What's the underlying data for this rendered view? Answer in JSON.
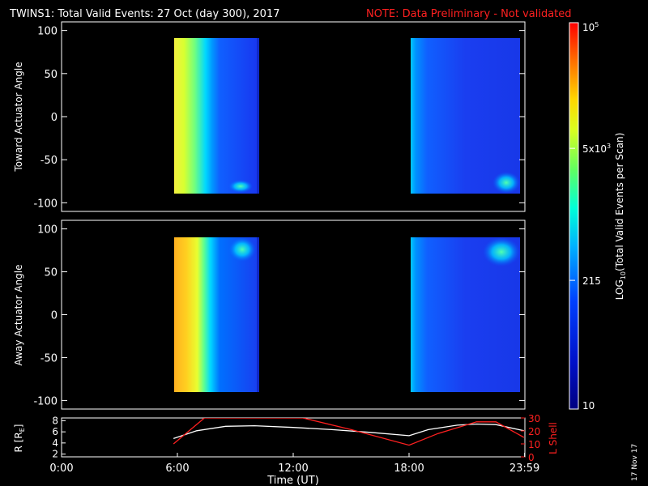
{
  "header": {
    "title": "TWINS1: Total Valid Events: 27 Oct (day 300), 2017",
    "note": "NOTE: Data Preliminary - Not validated",
    "note_color": "#ff2020"
  },
  "date_stamp": "17 Nov 17",
  "chart_data": [
    {
      "type": "heatmap",
      "ylabel": "Toward Actuator Angle",
      "ylim": [
        -110,
        110
      ],
      "yticks": [
        "100",
        "50",
        "0",
        "-50",
        "-100"
      ],
      "xlim": [
        0,
        24
      ],
      "data_intervals_ut_hours": [
        [
          5.9,
          10.0
        ],
        [
          17.95,
          23.95
        ]
      ],
      "angle_range": [
        -88,
        90
      ],
      "colormap": "rainbow (blue-low to red-high)",
      "description_of_values": "intensity falls from ~5x10^3 at start of each interval to ~10^2"
    },
    {
      "type": "heatmap",
      "ylabel": "Away Actuator Angle",
      "ylim": [
        -110,
        110
      ],
      "yticks": [
        "100",
        "50",
        "0",
        "-50",
        "-100"
      ],
      "xlim": [
        0,
        24
      ],
      "data_intervals_ut_hours": [
        [
          5.9,
          10.0
        ],
        [
          17.95,
          23.95
        ]
      ],
      "angle_range": [
        -88,
        90
      ]
    },
    {
      "type": "line",
      "ylabel": "R [R",
      "ylabel_sub": "E",
      "ylabel_end": "]",
      "y2label": "L Shell",
      "y2label_color": "#ff2020",
      "yticks": [
        "8",
        "6",
        "4",
        "2"
      ],
      "y2ticks": [
        "30",
        "20",
        "10",
        "0"
      ],
      "ylim": [
        1.5,
        8.5
      ],
      "y2lim": [
        0,
        30
      ],
      "xlabel": "Time (UT)",
      "xticks": [
        "0:00",
        "6:00",
        "12:00",
        "18:00",
        "23:59"
      ],
      "xlim": [
        0,
        24
      ],
      "series": [
        {
          "color": "#ffffff",
          "x": [
            5.8,
            7,
            8.5,
            10,
            12,
            14,
            16,
            18,
            19,
            20.5,
            21.5,
            22.5,
            23.95
          ],
          "y": [
            4.8,
            6.2,
            7.0,
            7.1,
            6.8,
            6.4,
            5.9,
            5.3,
            6.4,
            7.2,
            7.4,
            7.3,
            6.2
          ]
        },
        {
          "color": "#ff2020",
          "x": [
            5.8,
            7.4,
            12.5,
            15,
            18,
            19.5,
            21.5,
            22.5,
            23.95
          ],
          "y2": [
            10,
            30,
            30,
            21,
            9,
            18,
            27,
            27,
            15
          ]
        }
      ]
    }
  ],
  "colorbar": {
    "label_pre": "LOG",
    "label_sub": "10",
    "label_post": "(Total Valid Events per Scan)",
    "ticks": [
      {
        "label": "10",
        "sup": "5",
        "value": 100000
      },
      {
        "label": "5x10",
        "sup": "3",
        "value": 5000
      },
      {
        "label": "215",
        "sup": "",
        "value": 215
      },
      {
        "label": "10",
        "sup": "",
        "value": 10
      }
    ],
    "range": [
      10,
      100000
    ]
  }
}
